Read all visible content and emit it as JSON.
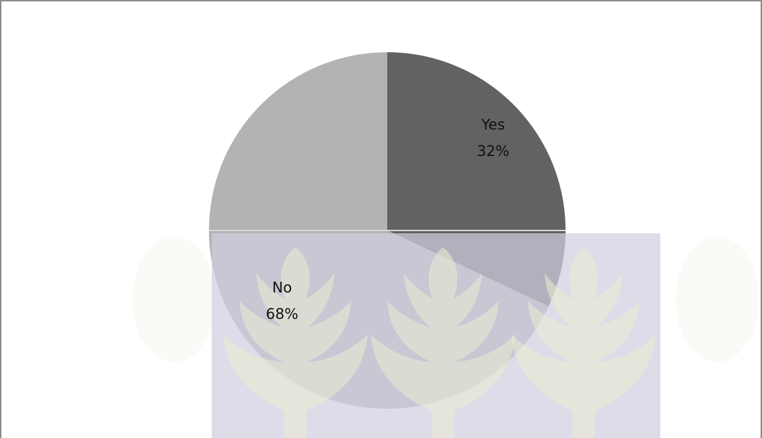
{
  "chart_data": {
    "type": "pie",
    "title": "",
    "slices": [
      {
        "label": "Yes",
        "percent_label": "32%",
        "value": 32,
        "color": "#626262"
      },
      {
        "label": "No",
        "percent_label": "68%",
        "value": 68,
        "color": "#b3b3b3"
      }
    ],
    "legend": "none"
  },
  "watermark": {
    "description_colors": {
      "panel": "#cfd0e1",
      "leaf": "#ecebd2"
    }
  }
}
